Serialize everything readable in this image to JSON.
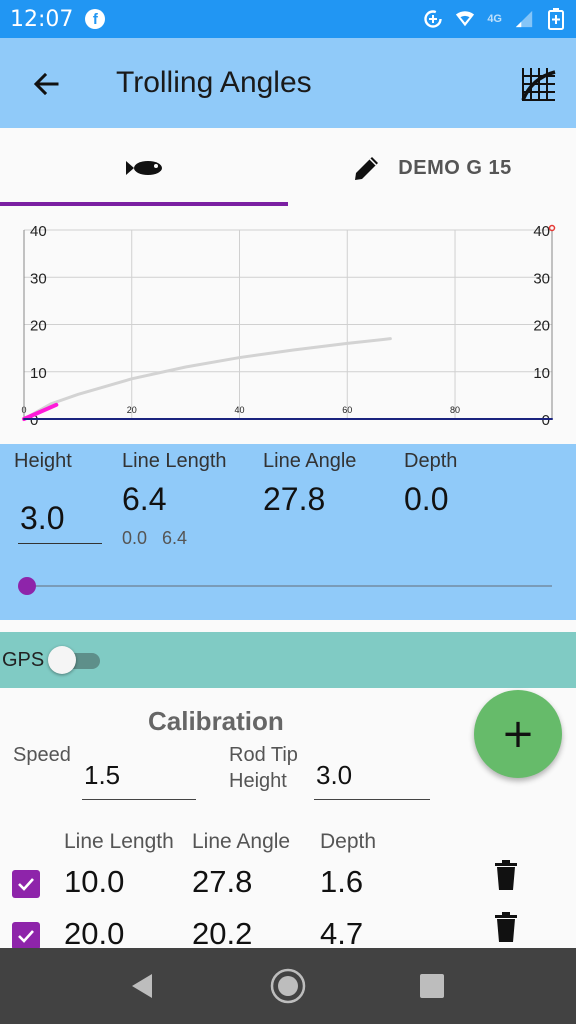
{
  "status_bar": {
    "time": "12:07",
    "network": "4G",
    "icons": [
      "facebook-icon",
      "data-saver-icon",
      "wifi-icon",
      "signal-icon",
      "battery-charging-icon"
    ]
  },
  "app_bar": {
    "title": "Trolling Angles",
    "back_icon": "arrow-left-icon",
    "action_icon": "chart-grid-icon"
  },
  "tabs": [
    {
      "icon": "fish-icon",
      "label": "",
      "active": true
    },
    {
      "icon": "pencil-icon",
      "label": "DEMO G 15",
      "active": false
    }
  ],
  "chart_data": {
    "type": "line",
    "x_ticks": [
      "0",
      "20",
      "40",
      "60",
      "80"
    ],
    "y_ticks_left": [
      "0",
      "10",
      "20",
      "30",
      "40"
    ],
    "y_ticks_right": [
      "0",
      "10",
      "20",
      "30",
      "40"
    ],
    "xlim": [
      0,
      98
    ],
    "ylim": [
      0,
      40
    ],
    "grid": true,
    "series": [
      {
        "color": "#d3d3d3",
        "x": [
          0,
          5,
          10,
          20,
          30,
          40,
          50,
          60,
          68
        ],
        "y": [
          0,
          3.2,
          5.2,
          8.5,
          11,
          13,
          14.6,
          16,
          17
        ]
      },
      {
        "color": "#ff1ad9",
        "x": [
          0,
          6
        ],
        "y": [
          0,
          3
        ]
      },
      {
        "color": "#1a237e",
        "x": [
          0,
          98
        ],
        "y": [
          0,
          0
        ]
      }
    ]
  },
  "readout": {
    "height": {
      "label": "Height",
      "value": "3.0"
    },
    "line_length": {
      "label": "Line Length",
      "value": "6.4",
      "sub1": "0.0",
      "sub2": "6.4"
    },
    "line_angle": {
      "label": "Line Angle",
      "value": "27.8"
    },
    "depth": {
      "label": "Depth",
      "value": "0.0"
    },
    "slider_fraction": 0.0
  },
  "gps": {
    "label": "GPS",
    "on": false
  },
  "calibration": {
    "title": "Calibration",
    "fab_label": "+",
    "speed_label": "Speed",
    "speed_value": "1.5",
    "rod_label_1": "Rod Tip",
    "rod_label_2": "Height",
    "rod_value": "3.0",
    "headers": [
      "Line Length",
      "Line Angle",
      "Depth"
    ],
    "rows": [
      {
        "line_length": "10.0",
        "line_angle": "27.8",
        "depth": "1.6"
      },
      {
        "line_length": "20.0",
        "line_angle": "20.2",
        "depth": "4.7"
      }
    ]
  },
  "colors": {
    "status_bar": "#2196f3",
    "app_bar": "#90caf9",
    "accent": "#8e24aa",
    "gps_bar": "#80cbc4",
    "fab": "#66bb6a",
    "nav_bar": "#424242"
  }
}
